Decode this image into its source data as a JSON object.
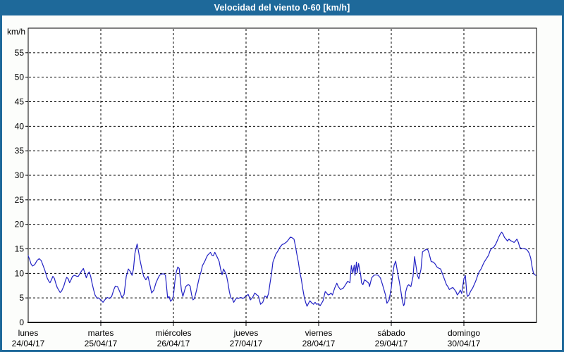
{
  "window": {
    "title": "Velocidad del viento 0-60 [km/h]"
  },
  "colors": {
    "title_bar": "#1e699a",
    "frame": "#1e699a",
    "background": "#fcfdfb",
    "plot_background": "#ffffff",
    "grid": "#000000",
    "axis": "#000000",
    "line": "#2222c4",
    "text": "#000000",
    "title_text": "#ffffff"
  },
  "chart_data": {
    "type": "line",
    "title": "Velocidad del viento 0-60 [km/h]",
    "ylabel": "km/h",
    "xlabel": "",
    "ylim": [
      0,
      60
    ],
    "ytick_step": 5,
    "ytick_labels": [
      "0",
      "5",
      "10",
      "15",
      "20",
      "25",
      "30",
      "35",
      "40",
      "45",
      "50",
      "55"
    ],
    "grid": "dashed",
    "legend_position": "none",
    "x_axis": {
      "days": [
        {
          "name": "lunes",
          "date": "24/04/17"
        },
        {
          "name": "martes",
          "date": "25/04/17"
        },
        {
          "name": "miércoles",
          "date": "26/04/17"
        },
        {
          "name": "jueves",
          "date": "27/04/17"
        },
        {
          "name": "viernes",
          "date": "28/04/17"
        },
        {
          "name": "sábado",
          "date": "29/04/17"
        },
        {
          "name": "domingo",
          "date": "30/04/17"
        }
      ]
    },
    "series": [
      {
        "name": "Velocidad del viento [km/h]",
        "x_unit": "days_from_start_0_to_7",
        "points": [
          [
            0.0,
            13.6
          ],
          [
            0.02,
            12.8
          ],
          [
            0.04,
            11.9
          ],
          [
            0.06,
            11.5
          ],
          [
            0.09,
            11.8
          ],
          [
            0.12,
            12.6
          ],
          [
            0.15,
            13.0
          ],
          [
            0.18,
            12.6
          ],
          [
            0.2,
            11.8
          ],
          [
            0.23,
            10.6
          ],
          [
            0.26,
            9.1
          ],
          [
            0.28,
            8.5
          ],
          [
            0.3,
            8.1
          ],
          [
            0.32,
            8.7
          ],
          [
            0.34,
            9.4
          ],
          [
            0.36,
            9.0
          ],
          [
            0.38,
            8.0
          ],
          [
            0.4,
            7.1
          ],
          [
            0.42,
            6.6
          ],
          [
            0.44,
            6.1
          ],
          [
            0.46,
            6.4
          ],
          [
            0.49,
            7.4
          ],
          [
            0.51,
            8.4
          ],
          [
            0.53,
            9.2
          ],
          [
            0.55,
            8.9
          ],
          [
            0.57,
            8.1
          ],
          [
            0.59,
            8.7
          ],
          [
            0.61,
            9.4
          ],
          [
            0.64,
            9.6
          ],
          [
            0.67,
            9.4
          ],
          [
            0.69,
            9.4
          ],
          [
            0.71,
            9.9
          ],
          [
            0.74,
            10.6
          ],
          [
            0.76,
            11.0
          ],
          [
            0.78,
            10.1
          ],
          [
            0.8,
            9.1
          ],
          [
            0.82,
            9.9
          ],
          [
            0.84,
            10.3
          ],
          [
            0.86,
            9.4
          ],
          [
            0.88,
            8.0
          ],
          [
            0.9,
            6.7
          ],
          [
            0.92,
            5.6
          ],
          [
            0.95,
            4.9
          ],
          [
            0.97,
            5.0
          ],
          [
            1.0,
            4.6
          ],
          [
            1.03,
            4.1
          ],
          [
            1.06,
            4.7
          ],
          [
            1.09,
            5.1
          ],
          [
            1.12,
            4.9
          ],
          [
            1.15,
            5.3
          ],
          [
            1.18,
            6.7
          ],
          [
            1.2,
            7.4
          ],
          [
            1.23,
            7.3
          ],
          [
            1.26,
            6.3
          ],
          [
            1.29,
            5.1
          ],
          [
            1.32,
            5.7
          ],
          [
            1.35,
            9.4
          ],
          [
            1.38,
            10.9
          ],
          [
            1.41,
            10.3
          ],
          [
            1.43,
            9.6
          ],
          [
            1.45,
            10.9
          ],
          [
            1.47,
            14.1
          ],
          [
            1.5,
            16.0
          ],
          [
            1.52,
            14.4
          ],
          [
            1.54,
            12.7
          ],
          [
            1.57,
            10.6
          ],
          [
            1.59,
            9.4
          ],
          [
            1.62,
            8.7
          ],
          [
            1.65,
            9.4
          ],
          [
            1.67,
            8.1
          ],
          [
            1.7,
            6.0
          ],
          [
            1.73,
            6.6
          ],
          [
            1.76,
            8.1
          ],
          [
            1.79,
            9.1
          ],
          [
            1.81,
            9.6
          ],
          [
            1.84,
            9.9
          ],
          [
            1.87,
            9.9
          ],
          [
            1.89,
            9.6
          ],
          [
            1.92,
            5.0
          ],
          [
            1.94,
            5.3
          ],
          [
            1.96,
            4.3
          ],
          [
            1.98,
            4.6
          ],
          [
            2.0,
            5.4
          ],
          [
            2.02,
            8.4
          ],
          [
            2.04,
            10.3
          ],
          [
            2.06,
            11.3
          ],
          [
            2.08,
            11.0
          ],
          [
            2.09,
            9.4
          ],
          [
            2.11,
            6.6
          ],
          [
            2.13,
            5.3
          ],
          [
            2.15,
            6.3
          ],
          [
            2.17,
            7.3
          ],
          [
            2.19,
            7.6
          ],
          [
            2.21,
            7.7
          ],
          [
            2.23,
            7.4
          ],
          [
            2.25,
            5.6
          ],
          [
            2.27,
            4.6
          ],
          [
            2.29,
            4.9
          ],
          [
            2.32,
            6.7
          ],
          [
            2.34,
            8.1
          ],
          [
            2.36,
            9.4
          ],
          [
            2.38,
            10.3
          ],
          [
            2.4,
            11.6
          ],
          [
            2.43,
            12.4
          ],
          [
            2.45,
            13.1
          ],
          [
            2.47,
            13.7
          ],
          [
            2.49,
            14.0
          ],
          [
            2.51,
            14.3
          ],
          [
            2.53,
            13.7
          ],
          [
            2.55,
            13.6
          ],
          [
            2.57,
            14.3
          ],
          [
            2.59,
            13.7
          ],
          [
            2.61,
            13.1
          ],
          [
            2.63,
            12.4
          ],
          [
            2.65,
            10.9
          ],
          [
            2.67,
            9.7
          ],
          [
            2.69,
            10.9
          ],
          [
            2.71,
            10.3
          ],
          [
            2.73,
            9.6
          ],
          [
            2.75,
            8.1
          ],
          [
            2.77,
            6.3
          ],
          [
            2.79,
            5.0
          ],
          [
            2.81,
            4.9
          ],
          [
            2.83,
            4.1
          ],
          [
            2.85,
            4.6
          ],
          [
            2.87,
            5.0
          ],
          [
            2.89,
            4.9
          ],
          [
            2.91,
            5.0
          ],
          [
            2.93,
            5.1
          ],
          [
            2.95,
            4.9
          ],
          [
            2.97,
            5.0
          ],
          [
            3.0,
            5.4
          ],
          [
            3.03,
            5.7
          ],
          [
            3.06,
            4.6
          ],
          [
            3.09,
            5.1
          ],
          [
            3.12,
            6.0
          ],
          [
            3.15,
            5.6
          ],
          [
            3.17,
            5.4
          ],
          [
            3.2,
            3.7
          ],
          [
            3.23,
            4.1
          ],
          [
            3.26,
            5.4
          ],
          [
            3.29,
            5.1
          ],
          [
            3.31,
            5.9
          ],
          [
            3.33,
            8.0
          ],
          [
            3.35,
            9.9
          ],
          [
            3.37,
            12.3
          ],
          [
            3.39,
            13.1
          ],
          [
            3.41,
            13.9
          ],
          [
            3.44,
            14.6
          ],
          [
            3.47,
            15.4
          ],
          [
            3.5,
            15.9
          ],
          [
            3.52,
            16.0
          ],
          [
            3.55,
            16.3
          ],
          [
            3.57,
            16.6
          ],
          [
            3.59,
            17.0
          ],
          [
            3.61,
            17.4
          ],
          [
            3.63,
            17.3
          ],
          [
            3.66,
            17.0
          ],
          [
            3.68,
            15.6
          ],
          [
            3.7,
            13.9
          ],
          [
            3.72,
            12.3
          ],
          [
            3.74,
            10.3
          ],
          [
            3.76,
            8.9
          ],
          [
            3.78,
            7.0
          ],
          [
            3.8,
            5.3
          ],
          [
            3.82,
            4.1
          ],
          [
            3.84,
            3.3
          ],
          [
            3.86,
            3.9
          ],
          [
            3.88,
            4.4
          ],
          [
            3.91,
            3.9
          ],
          [
            3.93,
            3.7
          ],
          [
            3.95,
            4.1
          ],
          [
            3.97,
            3.7
          ],
          [
            4.0,
            3.8
          ],
          [
            4.02,
            3.4
          ],
          [
            4.06,
            4.4
          ],
          [
            4.09,
            6.3
          ],
          [
            4.11,
            6.0
          ],
          [
            4.13,
            5.6
          ],
          [
            4.15,
            5.7
          ],
          [
            4.17,
            6.0
          ],
          [
            4.19,
            5.6
          ],
          [
            4.22,
            7.0
          ],
          [
            4.25,
            8.0
          ],
          [
            4.27,
            7.3
          ],
          [
            4.3,
            6.7
          ],
          [
            4.34,
            7.0
          ],
          [
            4.37,
            7.7
          ],
          [
            4.4,
            8.4
          ],
          [
            4.43,
            8.1
          ],
          [
            4.45,
            11.6
          ],
          [
            4.47,
            10.1
          ],
          [
            4.49,
            11.7
          ],
          [
            4.5,
            9.6
          ],
          [
            4.52,
            12.3
          ],
          [
            4.53,
            10.1
          ],
          [
            4.55,
            12.0
          ],
          [
            4.58,
            9.6
          ],
          [
            4.59,
            8.1
          ],
          [
            4.61,
            7.7
          ],
          [
            4.63,
            8.7
          ],
          [
            4.66,
            8.4
          ],
          [
            4.69,
            8.0
          ],
          [
            4.7,
            7.3
          ],
          [
            4.73,
            9.1
          ],
          [
            4.76,
            9.6
          ],
          [
            4.79,
            9.7
          ],
          [
            4.82,
            9.6
          ],
          [
            4.85,
            9.1
          ],
          [
            4.88,
            7.7
          ],
          [
            4.92,
            5.6
          ],
          [
            4.94,
            3.9
          ],
          [
            4.97,
            4.6
          ],
          [
            5.0,
            7.0
          ],
          [
            5.02,
            9.9
          ],
          [
            5.04,
            11.7
          ],
          [
            5.06,
            12.5
          ],
          [
            5.09,
            9.9
          ],
          [
            5.11,
            8.4
          ],
          [
            5.13,
            6.6
          ],
          [
            5.15,
            4.6
          ],
          [
            5.17,
            3.4
          ],
          [
            5.18,
            3.7
          ],
          [
            5.2,
            6.3
          ],
          [
            5.22,
            7.4
          ],
          [
            5.24,
            7.7
          ],
          [
            5.27,
            7.3
          ],
          [
            5.3,
            9.4
          ],
          [
            5.32,
            13.4
          ],
          [
            5.36,
            9.6
          ],
          [
            5.38,
            8.9
          ],
          [
            5.41,
            10.9
          ],
          [
            5.43,
            14.4
          ],
          [
            5.46,
            14.7
          ],
          [
            5.48,
            14.9
          ],
          [
            5.5,
            14.9
          ],
          [
            5.52,
            14.1
          ],
          [
            5.55,
            12.4
          ],
          [
            5.58,
            12.3
          ],
          [
            5.6,
            12.0
          ],
          [
            5.63,
            11.3
          ],
          [
            5.66,
            11.0
          ],
          [
            5.68,
            10.9
          ],
          [
            5.7,
            10.1
          ],
          [
            5.73,
            8.9
          ],
          [
            5.76,
            7.7
          ],
          [
            5.78,
            7.3
          ],
          [
            5.8,
            6.7
          ],
          [
            5.83,
            7.0
          ],
          [
            5.85,
            7.1
          ],
          [
            5.87,
            6.7
          ],
          [
            5.89,
            6.3
          ],
          [
            5.91,
            5.6
          ],
          [
            5.93,
            6.0
          ],
          [
            5.95,
            6.6
          ],
          [
            5.97,
            5.9
          ],
          [
            6.0,
            8.9
          ],
          [
            6.02,
            9.6
          ],
          [
            6.04,
            5.9
          ],
          [
            6.05,
            5.3
          ],
          [
            6.07,
            5.6
          ],
          [
            6.09,
            6.3
          ],
          [
            6.12,
            7.0
          ],
          [
            6.15,
            8.0
          ],
          [
            6.17,
            8.7
          ],
          [
            6.19,
            9.6
          ],
          [
            6.21,
            10.3
          ],
          [
            6.24,
            11.0
          ],
          [
            6.26,
            11.7
          ],
          [
            6.28,
            12.3
          ],
          [
            6.31,
            13.0
          ],
          [
            6.34,
            13.7
          ],
          [
            6.36,
            14.6
          ],
          [
            6.38,
            15.1
          ],
          [
            6.41,
            15.3
          ],
          [
            6.44,
            16.0
          ],
          [
            6.46,
            16.7
          ],
          [
            6.48,
            17.4
          ],
          [
            6.5,
            18.0
          ],
          [
            6.52,
            18.4
          ],
          [
            6.54,
            18.0
          ],
          [
            6.56,
            17.3
          ],
          [
            6.58,
            17.0
          ],
          [
            6.6,
            16.6
          ],
          [
            6.62,
            17.0
          ],
          [
            6.64,
            16.7
          ],
          [
            6.67,
            16.5
          ],
          [
            6.69,
            16.3
          ],
          [
            6.71,
            16.6
          ],
          [
            6.73,
            17.0
          ],
          [
            6.75,
            16.3
          ],
          [
            6.77,
            15.3
          ],
          [
            6.79,
            15.1
          ],
          [
            6.82,
            15.1
          ],
          [
            6.84,
            15.0
          ],
          [
            6.86,
            14.9
          ],
          [
            6.88,
            14.6
          ],
          [
            6.9,
            14.1
          ],
          [
            6.92,
            13.1
          ],
          [
            6.94,
            11.3
          ],
          [
            6.96,
            9.9
          ],
          [
            6.99,
            9.6
          ]
        ]
      }
    ]
  }
}
